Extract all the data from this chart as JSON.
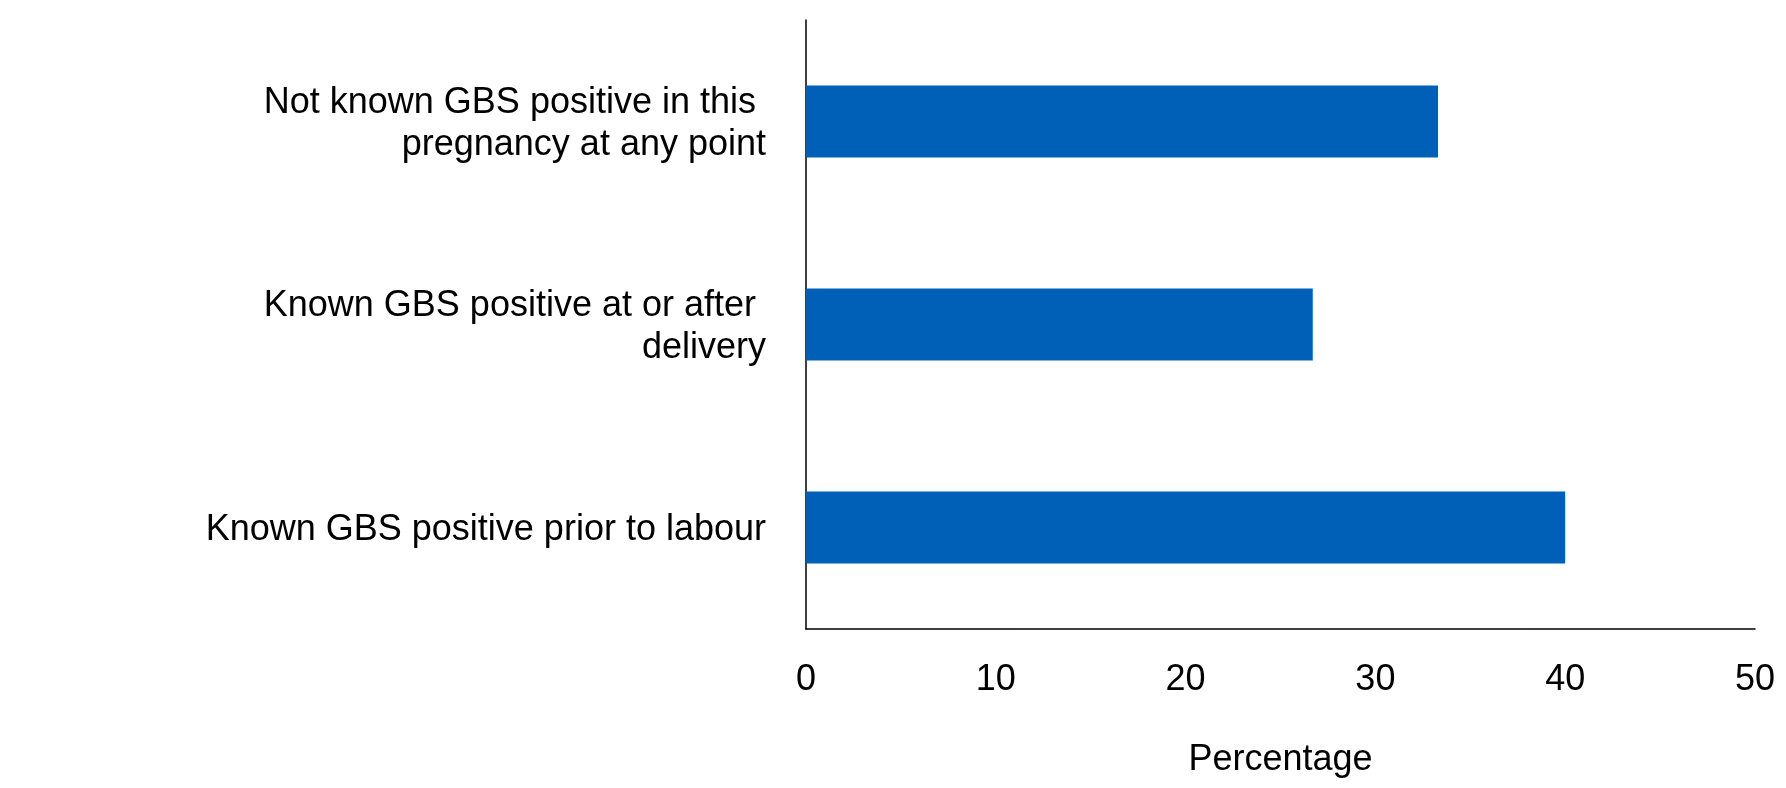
{
  "chart_data": {
    "type": "bar",
    "orientation": "horizontal",
    "xlabel": "Percentage",
    "categories": [
      "Not known GBS positive in this pregnancy at any point",
      "Known GBS positive at or after delivery",
      "Known GBS positive prior to labour"
    ],
    "values": [
      33.3,
      26.7,
      40
    ],
    "color": "#0060b8",
    "xlim": [
      0,
      50
    ],
    "xticks": [
      0,
      10,
      20,
      30,
      40,
      50
    ],
    "grid": false
  }
}
